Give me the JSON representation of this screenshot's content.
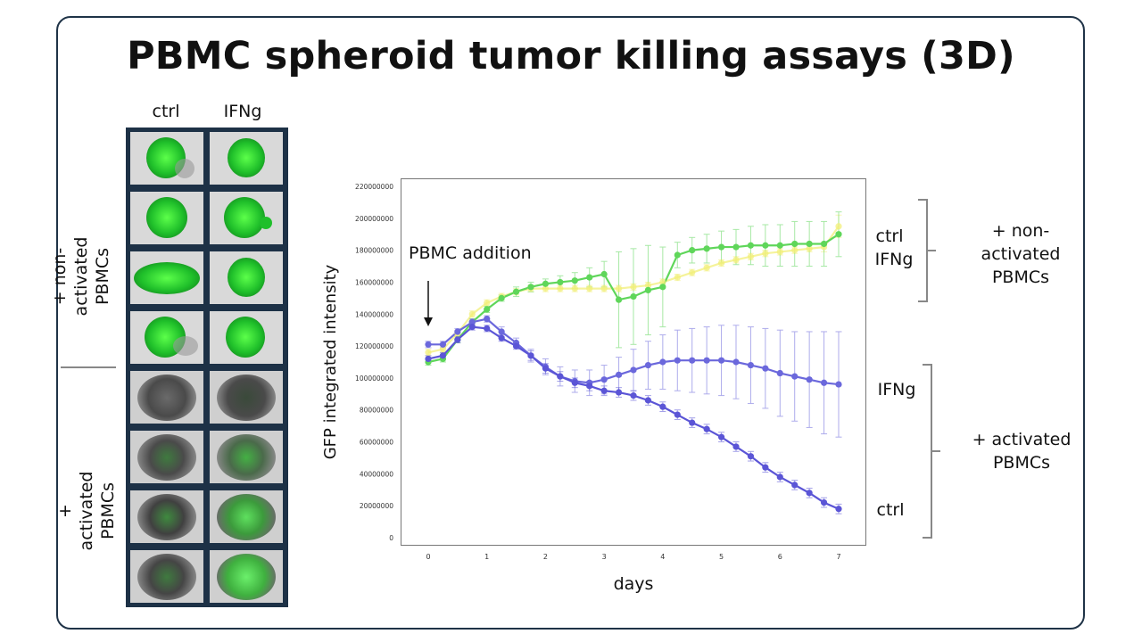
{
  "slide": {
    "title": "PBMC spheroid tumor killing assays (3D)"
  },
  "image_grid": {
    "columns": [
      "ctrl",
      "IFNg"
    ],
    "group_labels": [
      "+ non-activated PBMCs",
      "+ activated PBMCs"
    ],
    "rows_per_group": 4
  },
  "annotations": {
    "pbmc_addition": "PBMC addition",
    "right_non_ctrl": "ctrl",
    "right_non_ifng": "IFNg",
    "right_non_group": [
      "+ non-",
      "activated",
      "PBMCs"
    ],
    "right_act_ifng": "IFNg",
    "right_act_ctrl": "ctrl",
    "right_act_group": [
      "+ activated",
      "PBMCs"
    ]
  },
  "colors": {
    "nonact_ctrl": "#f2ef7a",
    "nonact_ifng": "#5fd65a",
    "act_ctrl": "#5b55d6",
    "act_ifng": "#6b68dc",
    "spheroid_green": "#1fbf2a"
  },
  "chart_data": {
    "type": "line",
    "title": "",
    "xlabel": "days",
    "ylabel": "GFP integrated intensity",
    "xlim": [
      -0.4,
      7.4
    ],
    "ylim": [
      0,
      220000000
    ],
    "xticks": [
      0,
      1,
      2,
      3,
      4,
      5,
      6,
      7
    ],
    "yticks": [
      0,
      20000000,
      40000000,
      60000000,
      80000000,
      100000000,
      120000000,
      140000000,
      160000000,
      180000000,
      200000000,
      220000000
    ],
    "ytick_labels": [
      "0",
      "20000000",
      "40000000",
      "60000000",
      "80000000",
      "100000000",
      "120000000",
      "140000000",
      "160000000",
      "180000000",
      "200000000",
      "220000000"
    ],
    "x": [
      0,
      0.25,
      0.5,
      0.75,
      1,
      1.25,
      1.5,
      1.75,
      2,
      2.25,
      2.5,
      2.75,
      3,
      3.25,
      3.5,
      3.75,
      4,
      4.25,
      4.5,
      4.75,
      5,
      5.25,
      5.5,
      5.75,
      6,
      6.25,
      6.5,
      6.75,
      7
    ],
    "series": [
      {
        "name": "non-activated ctrl",
        "color": "#f2ef7a",
        "values": [
          116000000,
          118000000,
          128000000,
          140000000,
          147000000,
          151000000,
          154000000,
          156000000,
          156000000,
          156000000,
          156000000,
          156000000,
          156000000,
          156000000,
          157000000,
          158000000,
          160000000,
          163000000,
          166000000,
          169000000,
          172000000,
          174000000,
          176000000,
          178000000,
          179000000,
          180000000,
          181000000,
          182000000,
          195000000
        ],
        "errors": [
          2000000,
          2000000,
          2000000,
          2000000,
          2000000,
          2000000,
          2000000,
          2000000,
          2000000,
          2000000,
          2000000,
          2000000,
          2000000,
          2000000,
          2000000,
          2000000,
          2000000,
          2000000,
          2000000,
          2000000,
          2000000,
          2000000,
          2000000,
          2000000,
          2000000,
          2000000,
          2000000,
          3000000,
          7000000
        ]
      },
      {
        "name": "non-activated IFNg",
        "color": "#5fd65a",
        "values": [
          110000000,
          112000000,
          124000000,
          135000000,
          143000000,
          150000000,
          154000000,
          157000000,
          159000000,
          160000000,
          161000000,
          163000000,
          165000000,
          149000000,
          151000000,
          155000000,
          157000000,
          177000000,
          180000000,
          181000000,
          182000000,
          182000000,
          183000000,
          183000000,
          183000000,
          184000000,
          184000000,
          184000000,
          190000000
        ],
        "errors": [
          2000000,
          2000000,
          2000000,
          2000000,
          2000000,
          2000000,
          3000000,
          3000000,
          3000000,
          4000000,
          5000000,
          6000000,
          8000000,
          30000000,
          30000000,
          28000000,
          25000000,
          8000000,
          8000000,
          9000000,
          10000000,
          11000000,
          12000000,
          13000000,
          13000000,
          14000000,
          14000000,
          14000000,
          14000000
        ]
      },
      {
        "name": "activated IFNg",
        "color": "#6b68dc",
        "values": [
          121000000,
          121000000,
          129000000,
          135000000,
          137000000,
          129000000,
          122000000,
          114000000,
          107000000,
          101000000,
          98000000,
          97000000,
          99000000,
          102000000,
          105000000,
          108000000,
          110000000,
          111000000,
          111000000,
          111000000,
          111000000,
          110000000,
          108000000,
          106000000,
          103000000,
          101000000,
          99000000,
          97000000,
          96000000
        ],
        "errors": [
          2000000,
          2000000,
          2000000,
          2000000,
          2000000,
          3000000,
          3000000,
          4000000,
          5000000,
          6000000,
          7000000,
          8000000,
          9000000,
          11000000,
          13000000,
          15000000,
          17000000,
          19000000,
          20000000,
          21000000,
          22000000,
          23000000,
          24000000,
          25000000,
          27000000,
          28000000,
          30000000,
          32000000,
          33000000
        ]
      },
      {
        "name": "activated ctrl",
        "color": "#5b55d6",
        "values": [
          112000000,
          114000000,
          124000000,
          132000000,
          131000000,
          125000000,
          120000000,
          114000000,
          106000000,
          101000000,
          97000000,
          95000000,
          92000000,
          91000000,
          89000000,
          86000000,
          82000000,
          77000000,
          72000000,
          68000000,
          63000000,
          57000000,
          51000000,
          44000000,
          38000000,
          33000000,
          28000000,
          22000000,
          18000000
        ],
        "errors": [
          2000000,
          2000000,
          2000000,
          2000000,
          2000000,
          2000000,
          2000000,
          3000000,
          3000000,
          3000000,
          3000000,
          3000000,
          3000000,
          3000000,
          3000000,
          3000000,
          3000000,
          3000000,
          3000000,
          3000000,
          3000000,
          3000000,
          3000000,
          3000000,
          3000000,
          3000000,
          3000000,
          3000000,
          3000000
        ]
      }
    ],
    "annotations": [
      {
        "text": "PBMC addition",
        "x": 0,
        "arrow": "down"
      }
    ]
  }
}
